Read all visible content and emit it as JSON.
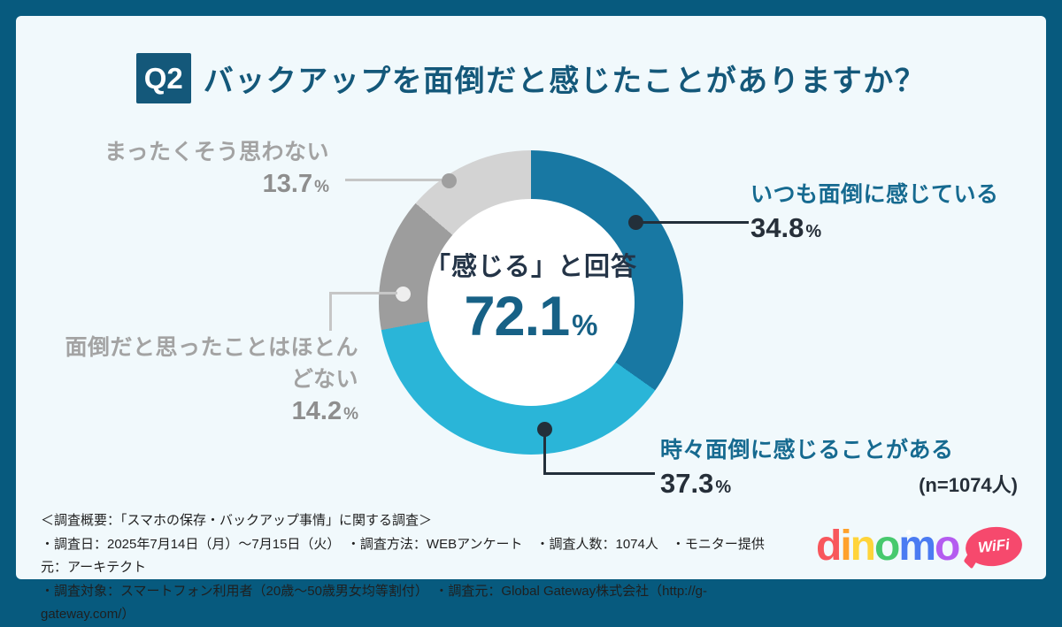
{
  "header": {
    "badge": "Q2",
    "title": "バックアップを面倒だと感じたことがありますか？"
  },
  "chart_data": {
    "type": "pie",
    "variant": "donut",
    "title": "Q2 バックアップを面倒だと感じたことがありますか？",
    "start_angle_deg": 0,
    "direction": "clockwise",
    "legend_position": "callouts",
    "center": {
      "label": "「感じる」と回答",
      "value": "72.1",
      "unit": "%"
    },
    "n_label": "(n=1074人)",
    "segments": [
      {
        "label": "いつも面倒に感じている",
        "value": 34.8,
        "color": "#1878a3"
      },
      {
        "label": "時々面倒に感じることがある",
        "value": 37.3,
        "color": "#2ab5d8"
      },
      {
        "label": "面倒だと思ったことはほとんどない",
        "value": 14.2,
        "color": "#9d9d9d"
      },
      {
        "label": "まったくそう思わない",
        "value": 13.7,
        "color": "#d3d3d3"
      }
    ]
  },
  "percent_sign": "%",
  "footer": {
    "lines": [
      "＜調査概要：「スマホの保存・バックアップ事情」に関する調査＞",
      "・調査日：2025年7月14日（月）～7月15日（火）　・調査方法：WEBアンケート　・調査人数：1074人　・モニター提供元：アーキテクト",
      "・調査対象：スマートフォン利用者（20歳～50歳男女均等割付）　・調査元：Global Gateway株式会社（http://g-gateway.com/）"
    ]
  },
  "logo": {
    "letters": [
      {
        "char": "d",
        "color": "#f8575c"
      },
      {
        "char": "i",
        "color": "#ffa12b"
      },
      {
        "char": "n",
        "color": "#ffd43a"
      },
      {
        "char": "o",
        "color": "#47c96e"
      },
      {
        "char": "m",
        "color": "#4b7bf2",
        "eye": true
      },
      {
        "char": "o",
        "color": "#b45cf0"
      }
    ],
    "wifi_label": "WiFi",
    "bubble_color": "#f6496d"
  },
  "colors": {
    "frame": "#075a7e",
    "card_bg": "#f1f9fc",
    "title": "#14587a",
    "center_value": "#176186",
    "dark_number": "#262f39",
    "teal_label": "#166a90",
    "gray_label": "#a3a3a3",
    "gray_number": "#8e8e8e"
  }
}
